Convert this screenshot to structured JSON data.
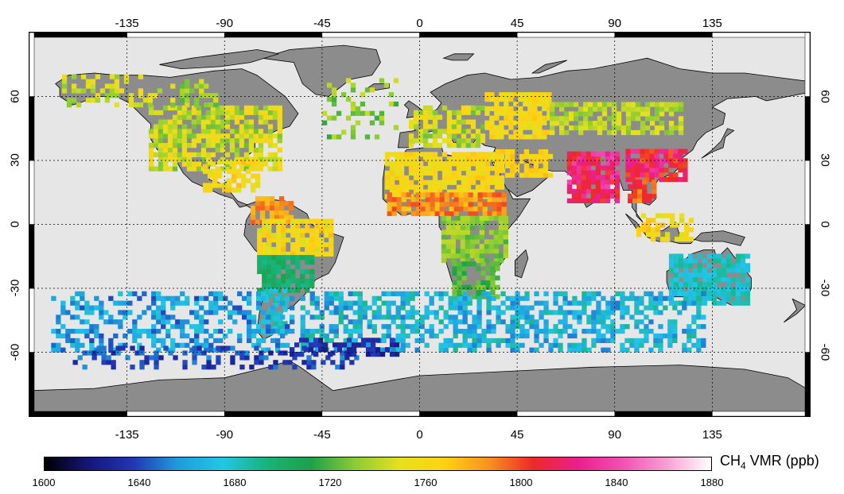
{
  "map": {
    "projection": "equirectangular",
    "longitude_ticks": [
      "-135",
      "-90",
      "-45",
      "0",
      "45",
      "90",
      "135"
    ],
    "latitude_ticks": [
      "60",
      "30",
      "0",
      "-30",
      "-60"
    ],
    "colors": {
      "ocean": "#e6e6e6",
      "land": "#8c8c8c",
      "coastline": "#000000",
      "graticule": "#000000"
    }
  },
  "colorbar": {
    "title_main": "CH",
    "title_sub": "4",
    "title_rest": " VMR (ppb)",
    "tick_labels": [
      "1600",
      "1640",
      "1680",
      "1720",
      "1760",
      "1800",
      "1840",
      "1880"
    ],
    "min": 1600,
    "max": 1880,
    "stops": [
      "#000000",
      "#16167a",
      "#2236b4",
      "#1f9cdc",
      "#22c6e6",
      "#19b37a",
      "#1ea14a",
      "#8ccc34",
      "#e6e01e",
      "#ffd214",
      "#f7921e",
      "#ee2828",
      "#ec1e8c",
      "#f250b4",
      "#f7a0d2",
      "#ffffff"
    ]
  }
}
